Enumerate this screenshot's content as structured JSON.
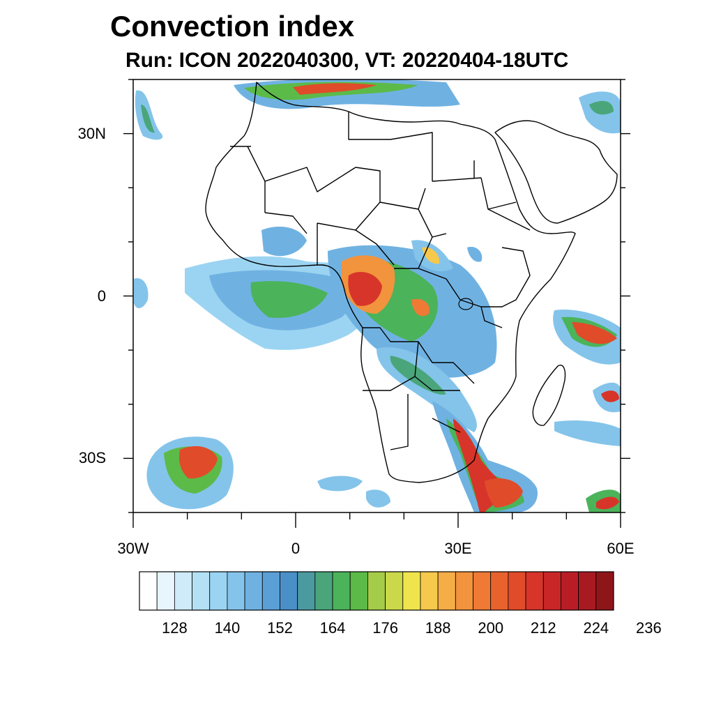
{
  "title": "Convection index",
  "subtitle": "Run: ICON 2022040300,  VT: 20220404-18UTC",
  "map": {
    "lon_range": [
      -30,
      60
    ],
    "lat_range": [
      -40,
      40
    ],
    "lat_ticks": [
      {
        "lat": 30,
        "label": "30N"
      },
      {
        "lat": 0,
        "label": "0"
      },
      {
        "lat": -30,
        "label": "30S"
      }
    ],
    "lon_ticks": [
      {
        "lon": -30,
        "label": "30W"
      },
      {
        "lon": 0,
        "label": "0"
      },
      {
        "lon": 30,
        "label": "30E"
      },
      {
        "lon": 60,
        "label": "60E"
      }
    ]
  },
  "colorbar": {
    "labels": [
      "128",
      "140",
      "152",
      "164",
      "176",
      "188",
      "200",
      "212",
      "224",
      "236"
    ],
    "colors": [
      "#ffffff",
      "#e8f5fc",
      "#cfeaf8",
      "#b4e0f6",
      "#9bd4f2",
      "#84c4ea",
      "#6fb2e2",
      "#5a9fd6",
      "#4b8fc9",
      "#4a9aa0",
      "#4aa67a",
      "#4bb35a",
      "#5cba48",
      "#a5cc48",
      "#cbd84a",
      "#f0e44e",
      "#f6c84c",
      "#f5ad45",
      "#f2933d",
      "#ee7a35",
      "#e8622e",
      "#e04b2a",
      "#d73529",
      "#c92628",
      "#b81d26",
      "#a81a22",
      "#8e1619"
    ]
  }
}
